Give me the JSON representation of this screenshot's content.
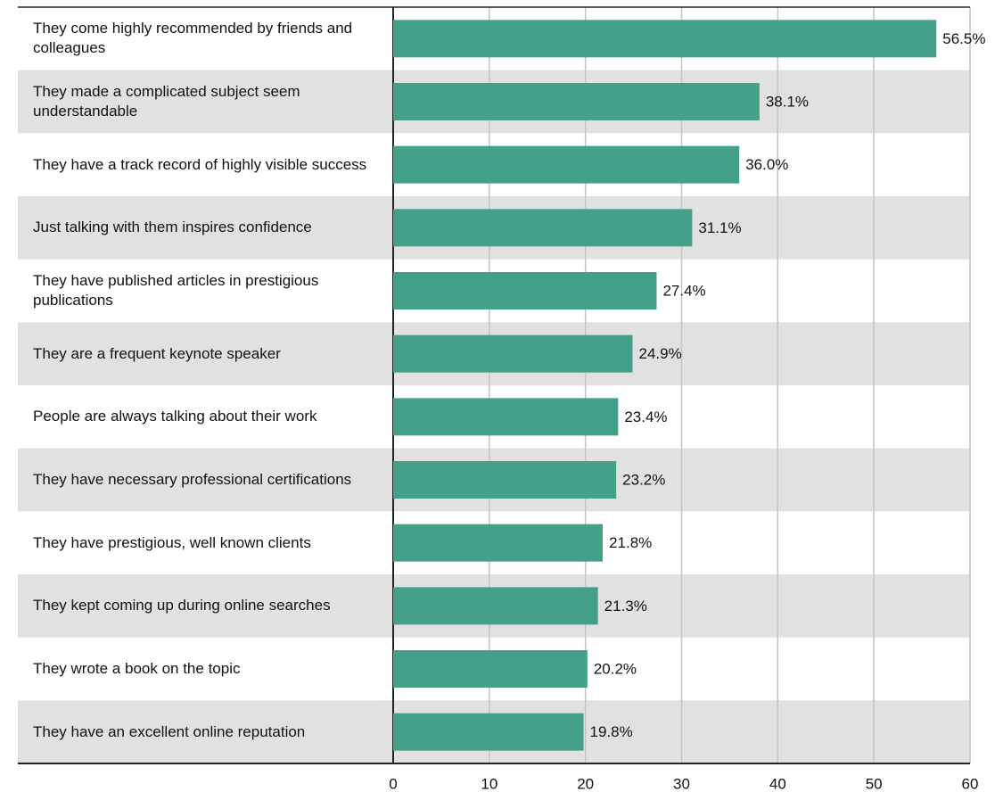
{
  "chart_data": {
    "type": "bar",
    "orientation": "horizontal",
    "categories": [
      "They come highly recommended by friends and colleagues",
      "They made a complicated subject seem understandable",
      "They have a track record of highly visible success",
      "Just talking with them inspires confidence",
      "They have published articles in prestigious publications",
      "They are a frequent keynote speaker",
      "People are always talking about their work",
      "They have necessary professional certifications",
      "They have prestigious, well known clients",
      "They kept coming up during online searches",
      "They wrote a book on the topic",
      "They have an excellent online reputation"
    ],
    "values": [
      56.5,
      38.1,
      36.0,
      31.1,
      27.4,
      24.9,
      23.4,
      23.2,
      21.8,
      21.3,
      20.2,
      19.8
    ],
    "value_labels": [
      "56.5%",
      "38.1%",
      "36.0%",
      "31.1%",
      "27.4%",
      "24.9%",
      "23.4%",
      "23.2%",
      "21.8%",
      "21.3%",
      "20.2%",
      "19.8%"
    ],
    "color": "#45a08a",
    "xlim": [
      0,
      60
    ],
    "xticks": [
      0,
      10,
      20,
      30,
      40,
      50,
      60
    ],
    "grid": true
  }
}
